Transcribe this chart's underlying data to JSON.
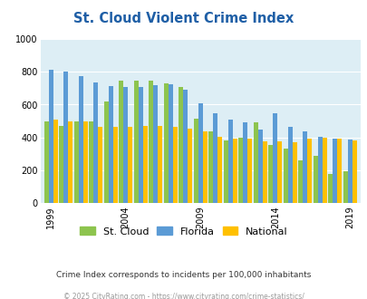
{
  "title": "St. Cloud Violent Crime Index",
  "years": [
    1999,
    2000,
    2001,
    2002,
    2003,
    2004,
    2005,
    2006,
    2007,
    2008,
    2009,
    2010,
    2011,
    2012,
    2013,
    2014,
    2015,
    2016,
    2017,
    2018,
    2019
  ],
  "st_cloud": [
    500,
    470,
    500,
    500,
    620,
    745,
    745,
    745,
    730,
    705,
    515,
    435,
    385,
    400,
    490,
    355,
    335,
    260,
    290,
    180,
    195
  ],
  "florida": [
    810,
    800,
    775,
    735,
    715,
    710,
    710,
    720,
    725,
    690,
    610,
    545,
    510,
    490,
    450,
    545,
    465,
    435,
    405,
    395,
    390
  ],
  "national": [
    510,
    500,
    500,
    465,
    465,
    465,
    470,
    470,
    465,
    455,
    435,
    405,
    395,
    395,
    375,
    375,
    370,
    395,
    400,
    395,
    380
  ],
  "ylim": [
    0,
    1000
  ],
  "yticks": [
    0,
    200,
    400,
    600,
    800,
    1000
  ],
  "xlabel_years": [
    1999,
    2004,
    2009,
    2014,
    2019
  ],
  "color_stcloud": "#8dc44e",
  "color_florida": "#5b9bd5",
  "color_national": "#ffc000",
  "bg_color": "#ddeef5",
  "legend_labels": [
    "St. Cloud",
    "Florida",
    "National"
  ],
  "subtitle": "Crime Index corresponds to incidents per 100,000 inhabitants",
  "footer": "© 2025 CityRating.com - https://www.cityrating.com/crime-statistics/",
  "title_color": "#1f5fa6",
  "subtitle_color": "#333333",
  "footer_color": "#999999"
}
